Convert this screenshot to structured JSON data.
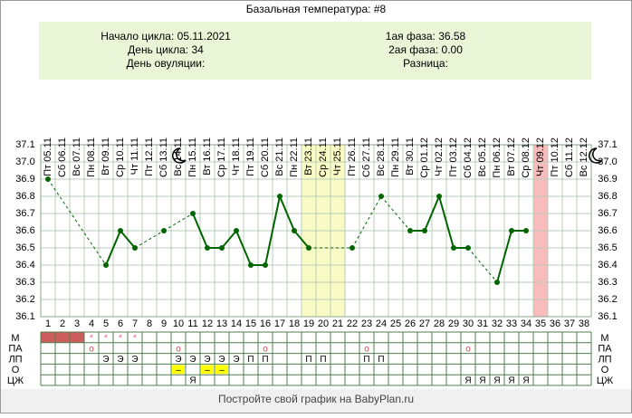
{
  "chart_data": {
    "type": "line",
    "title": "Базальная температура: #8",
    "info_left": [
      "Начало цикла: 05.11.2021",
      "День цикла: 34",
      "День овуляции:"
    ],
    "info_right": [
      "1ая фаза: 36.58",
      "2ая фаза: 0.00",
      "Разница:"
    ],
    "dates": [
      "Пт 05.11",
      "Сб 06.11",
      "Вс 07.11",
      "Пн 08.11",
      "Вт 09.11",
      "Ср 10.11",
      "Чт 11.11",
      "Пт 12.11",
      "Сб 13.11",
      "Вс 14.11",
      "Пн 15.11",
      "Вт 16.11",
      "Ср 17.11",
      "Чт 18.11",
      "Пт 19.11",
      "Сб 20.11",
      "Вс 21.11",
      "Пн 22.11",
      "Вт 23.11",
      "Ср 24.11",
      "Чт 25.11",
      "Пт 26.11",
      "Сб 27.11",
      "Вс 28.11",
      "Пн 29.11",
      "Вт 30.11",
      "Ср 01.12",
      "Чт 02.12",
      "Пт 03.12",
      "Сб 04.12",
      "Вс 05.12",
      "Пн 06.12",
      "Вт 07.12",
      "Ср 08.12",
      "Чт 09.12",
      "Пт 10.12",
      "Сб 11.12",
      "Вс 12.12"
    ],
    "categories": [
      1,
      2,
      3,
      4,
      5,
      6,
      7,
      8,
      9,
      10,
      11,
      12,
      13,
      14,
      15,
      16,
      17,
      18,
      19,
      20,
      21,
      22,
      23,
      24,
      25,
      26,
      27,
      28,
      29,
      30,
      31,
      32,
      33,
      34,
      35,
      36,
      37,
      38
    ],
    "values": [
      36.9,
      null,
      null,
      null,
      36.4,
      36.6,
      36.5,
      null,
      36.6,
      null,
      36.7,
      36.5,
      36.5,
      36.6,
      36.4,
      36.4,
      36.8,
      36.6,
      36.5,
      null,
      null,
      36.5,
      null,
      36.8,
      null,
      36.6,
      36.6,
      36.8,
      36.5,
      36.5,
      null,
      36.3,
      36.6,
      36.6,
      null,
      null,
      null,
      null
    ],
    "color": "#006400",
    "ylim": [
      36.1,
      37.1
    ],
    "yticks": [
      36.1,
      36.2,
      36.3,
      36.4,
      36.5,
      36.6,
      36.7,
      36.8,
      36.9,
      {
        "value": 37,
        "label": "37.0"
      },
      37.1
    ],
    "grid": true,
    "highlights": [
      {
        "from": 19,
        "to": 21,
        "color": "#fafac4"
      },
      {
        "from": 35,
        "to": 35,
        "color": "#f9bcbc"
      }
    ],
    "table": [
      {
        "label": "М",
        "fill_days": [
          1,
          2,
          3
        ],
        "fill_color": "#cd5c5c",
        "text_color": "#e06060",
        "cells": [
          null,
          null,
          null,
          "*",
          "*",
          "*",
          "*",
          null,
          null,
          null,
          null,
          null,
          null,
          null,
          null,
          null,
          null,
          null,
          null,
          null,
          null,
          null,
          null,
          null,
          null,
          null,
          null,
          null,
          null,
          null,
          null,
          null,
          null,
          null,
          null,
          null,
          null,
          null
        ]
      },
      {
        "label": "ПА",
        "text_color": "#d04040",
        "cells": [
          null,
          null,
          null,
          "o",
          null,
          null,
          null,
          null,
          null,
          "o",
          null,
          null,
          null,
          null,
          null,
          "o",
          null,
          null,
          null,
          null,
          null,
          null,
          "o",
          null,
          null,
          null,
          null,
          null,
          null,
          "o",
          null,
          null,
          null,
          null,
          null,
          null,
          null,
          null
        ]
      },
      {
        "label": "ЛП",
        "text_color": "#000000",
        "cells": [
          null,
          null,
          null,
          null,
          "Э",
          "Э",
          "Э",
          null,
          null,
          "Э",
          "Э",
          "Э",
          "Э",
          "Э",
          "П",
          "П",
          null,
          null,
          "П",
          "П",
          null,
          null,
          "П",
          "П",
          null,
          null,
          null,
          null,
          null,
          null,
          null,
          null,
          null,
          null,
          null,
          null,
          null,
          null
        ]
      },
      {
        "label": "О",
        "text_color": "#000000",
        "cell_color": "#ffff00",
        "cells": [
          null,
          null,
          null,
          null,
          null,
          null,
          null,
          null,
          null,
          "–",
          null,
          "–",
          "–",
          null,
          null,
          null,
          null,
          null,
          null,
          null,
          null,
          null,
          null,
          null,
          null,
          null,
          null,
          null,
          null,
          null,
          null,
          null,
          null,
          null,
          null,
          null,
          null,
          null
        ]
      },
      {
        "label": "ЦЖ",
        "text_color": "#000000",
        "cells": [
          null,
          null,
          null,
          null,
          null,
          null,
          null,
          null,
          null,
          null,
          "Я",
          null,
          null,
          null,
          null,
          null,
          null,
          null,
          null,
          null,
          null,
          null,
          null,
          null,
          null,
          null,
          null,
          null,
          null,
          "Я",
          "Я",
          "Я",
          "Я",
          "Я",
          null,
          null,
          null,
          null
        ]
      }
    ],
    "footer": "Постройте свой график на BabyPlan.ru"
  }
}
